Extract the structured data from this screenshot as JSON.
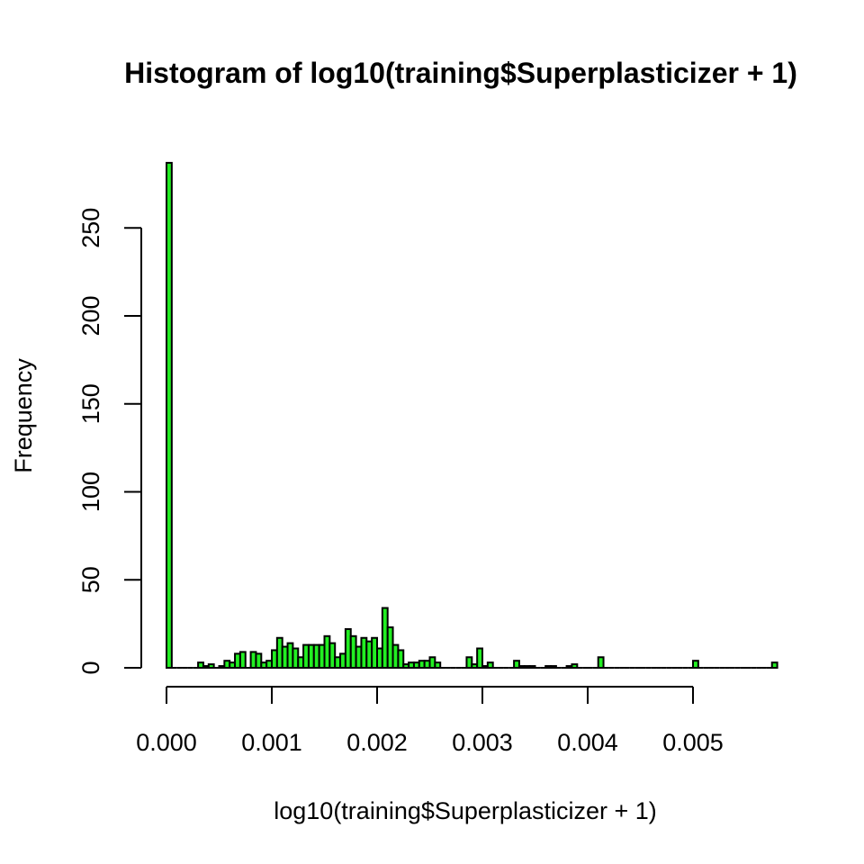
{
  "chart_data": {
    "type": "bar",
    "title": "Histogram of log10(training$Superplasticizer + 1)",
    "xlabel": "log10(training$Superplasticizer + 1)",
    "ylabel": "Frequency",
    "xlim": [
      0.0,
      0.00575
    ],
    "ylim": [
      0,
      287
    ],
    "bin_width": 5e-05,
    "x_ticks": [
      "0.000",
      "0.001",
      "0.002",
      "0.003",
      "0.004",
      "0.005"
    ],
    "x_tick_values": [
      0.0,
      0.001,
      0.002,
      0.003,
      0.004,
      0.005
    ],
    "y_ticks": [
      "0",
      "50",
      "100",
      "150",
      "200",
      "250"
    ],
    "y_tick_values": [
      0,
      50,
      100,
      150,
      200,
      250
    ],
    "fill_color": "#22ee22",
    "edge_color": "#000000",
    "counts": [
      287,
      0,
      0,
      0,
      0,
      0,
      3,
      1,
      2,
      0,
      1,
      4,
      3,
      8,
      9,
      0,
      9,
      8,
      3,
      4,
      10,
      17,
      12,
      14,
      11,
      6,
      13,
      13,
      13,
      13,
      18,
      14,
      6,
      8,
      22,
      18,
      12,
      17,
      15,
      17,
      11,
      34,
      23,
      13,
      10,
      2,
      3,
      3,
      4,
      4,
      6,
      3,
      0,
      0,
      0,
      0,
      0,
      6,
      2,
      11,
      1,
      3,
      0,
      0,
      0,
      0,
      4,
      1,
      1,
      1,
      0,
      0,
      1,
      1,
      0,
      0,
      1,
      2,
      0,
      0,
      0,
      0,
      6,
      0,
      0,
      0,
      0,
      0,
      0,
      0,
      0,
      0,
      0,
      0,
      0,
      0,
      0,
      0,
      0,
      0,
      4,
      0,
      0,
      0,
      0,
      0,
      0,
      0,
      0,
      0,
      0,
      0,
      0,
      0,
      0,
      3
    ]
  }
}
